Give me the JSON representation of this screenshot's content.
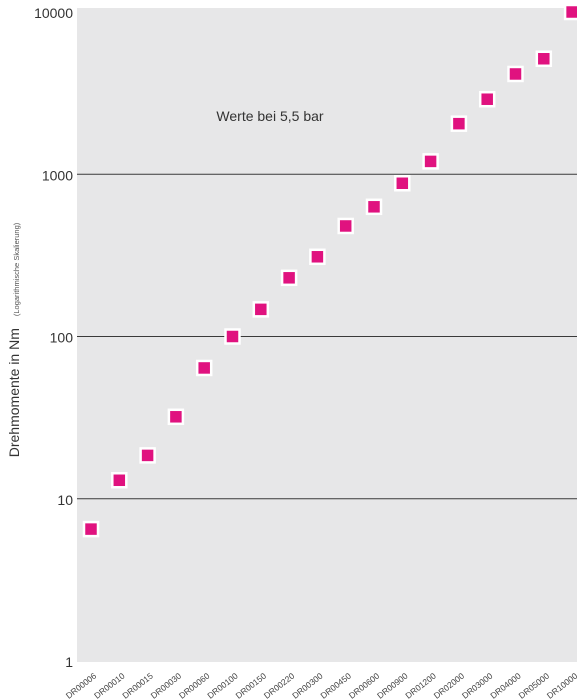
{
  "chart_data": {
    "type": "scatter",
    "ylabel": "Drehmomente in Nm",
    "ylabel_note": "(Logarithmische Skalierung)",
    "annotation": "Werte bei 5,5 bar",
    "yscale": "log",
    "ylim": [
      1,
      10000
    ],
    "yticks": [
      {
        "value": 1,
        "label": "1"
      },
      {
        "value": 10,
        "label": "10"
      },
      {
        "value": 100,
        "label": "100"
      },
      {
        "value": 1000,
        "label": "1000"
      },
      {
        "value": 10000,
        "label": "10000"
      }
    ],
    "grid": true,
    "marker_color": "#e0127f",
    "background_color": "#e7e7e8",
    "categories": [
      "DR00006",
      "DR00010",
      "DR00015",
      "DR00030",
      "DR00060",
      "DR00100",
      "DR00150",
      "DR00220",
      "DR00300",
      "DR00450",
      "DR00600",
      "DR00900",
      "DR01200",
      "DR02000",
      "DR03000",
      "DR04000",
      "DR05000",
      "DR10000"
    ],
    "values": [
      6.5,
      13,
      18.5,
      32,
      64,
      100,
      147,
      230,
      310,
      480,
      630,
      880,
      1200,
      2050,
      2900,
      4150,
      5150,
      10000
    ]
  }
}
